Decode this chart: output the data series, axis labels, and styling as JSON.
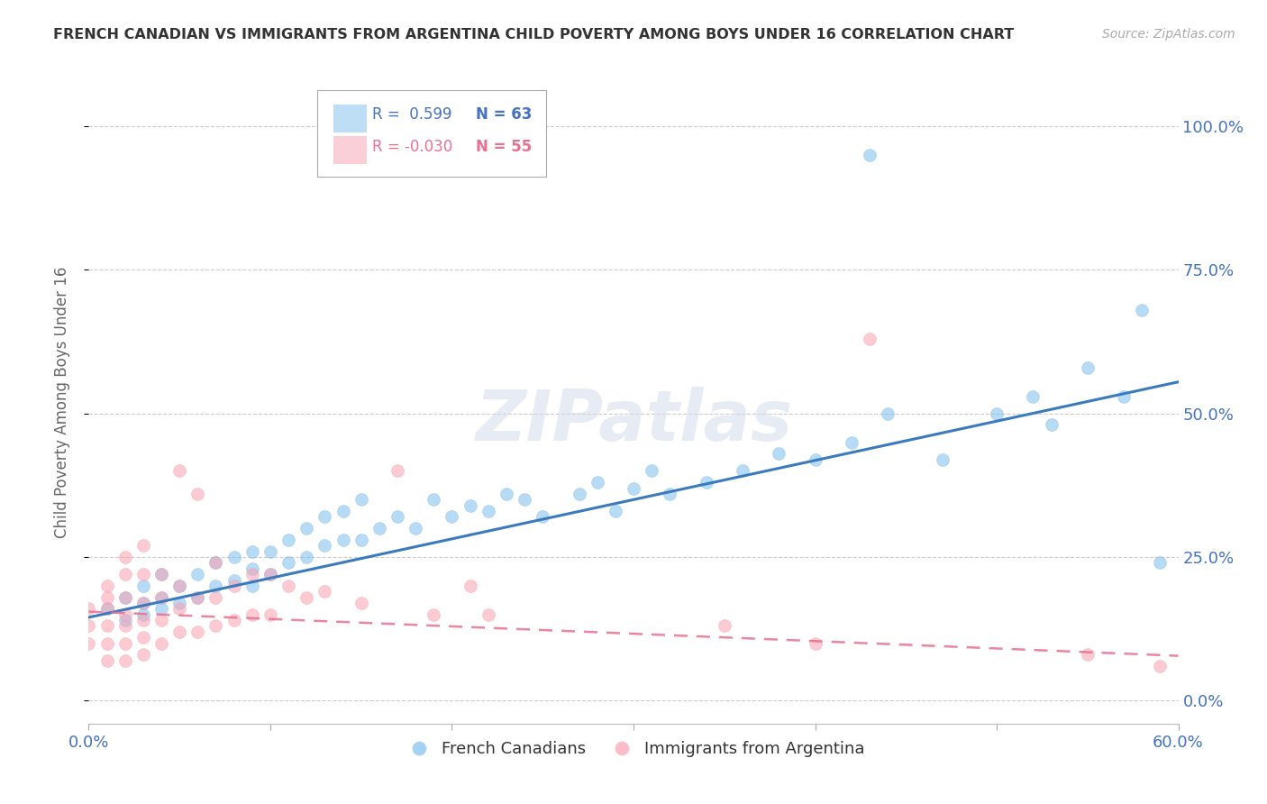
{
  "title": "FRENCH CANADIAN VS IMMIGRANTS FROM ARGENTINA CHILD POVERTY AMONG BOYS UNDER 16 CORRELATION CHART",
  "source": "Source: ZipAtlas.com",
  "ylabel": "Child Poverty Among Boys Under 16",
  "xlim": [
    0.0,
    0.6
  ],
  "ylim": [
    -0.04,
    1.08
  ],
  "yticks": [
    0.0,
    0.25,
    0.5,
    0.75,
    1.0
  ],
  "ytick_labels": [
    "0.0%",
    "25.0%",
    "50.0%",
    "75.0%",
    "100.0%"
  ],
  "xtick_positions": [
    0.0,
    0.1,
    0.2,
    0.3,
    0.4,
    0.5,
    0.6
  ],
  "xtick_labels": [
    "0.0%",
    "",
    "",
    "",
    "",
    "",
    "60.0%"
  ],
  "legend_r_blue": "R =  0.599",
  "legend_n_blue": "N = 63",
  "legend_r_pink": "R = -0.030",
  "legend_n_pink": "N = 55",
  "blue_color": "#7fbfed",
  "pink_color": "#f9a0b0",
  "line_blue_color": "#3a7abf",
  "line_pink_color": "#e87090",
  "watermark": "ZIPatlas",
  "blue_scatter_x": [
    0.01,
    0.02,
    0.02,
    0.03,
    0.03,
    0.03,
    0.04,
    0.04,
    0.04,
    0.05,
    0.05,
    0.06,
    0.06,
    0.07,
    0.07,
    0.08,
    0.08,
    0.09,
    0.09,
    0.09,
    0.1,
    0.1,
    0.11,
    0.11,
    0.12,
    0.12,
    0.13,
    0.13,
    0.14,
    0.14,
    0.15,
    0.15,
    0.16,
    0.17,
    0.18,
    0.19,
    0.2,
    0.21,
    0.22,
    0.23,
    0.24,
    0.25,
    0.27,
    0.28,
    0.29,
    0.3,
    0.31,
    0.32,
    0.34,
    0.36,
    0.38,
    0.4,
    0.42,
    0.44,
    0.47,
    0.5,
    0.52,
    0.53,
    0.55,
    0.57,
    0.58,
    0.59,
    0.43
  ],
  "blue_scatter_y": [
    0.16,
    0.14,
    0.18,
    0.15,
    0.17,
    0.2,
    0.16,
    0.18,
    0.22,
    0.17,
    0.2,
    0.18,
    0.22,
    0.2,
    0.24,
    0.21,
    0.25,
    0.2,
    0.23,
    0.26,
    0.22,
    0.26,
    0.24,
    0.28,
    0.25,
    0.3,
    0.27,
    0.32,
    0.28,
    0.33,
    0.28,
    0.35,
    0.3,
    0.32,
    0.3,
    0.35,
    0.32,
    0.34,
    0.33,
    0.36,
    0.35,
    0.32,
    0.36,
    0.38,
    0.33,
    0.37,
    0.4,
    0.36,
    0.38,
    0.4,
    0.43,
    0.42,
    0.45,
    0.5,
    0.42,
    0.5,
    0.53,
    0.48,
    0.58,
    0.53,
    0.68,
    0.24,
    0.95
  ],
  "pink_scatter_x": [
    0.0,
    0.0,
    0.0,
    0.01,
    0.01,
    0.01,
    0.01,
    0.01,
    0.01,
    0.02,
    0.02,
    0.02,
    0.02,
    0.02,
    0.02,
    0.02,
    0.03,
    0.03,
    0.03,
    0.03,
    0.03,
    0.03,
    0.04,
    0.04,
    0.04,
    0.04,
    0.05,
    0.05,
    0.05,
    0.05,
    0.06,
    0.06,
    0.06,
    0.07,
    0.07,
    0.07,
    0.08,
    0.08,
    0.09,
    0.09,
    0.1,
    0.1,
    0.11,
    0.12,
    0.13,
    0.15,
    0.17,
    0.19,
    0.21,
    0.22,
    0.35,
    0.4,
    0.43,
    0.55,
    0.59
  ],
  "pink_scatter_y": [
    0.1,
    0.13,
    0.16,
    0.07,
    0.1,
    0.13,
    0.16,
    0.18,
    0.2,
    0.07,
    0.1,
    0.13,
    0.15,
    0.18,
    0.22,
    0.25,
    0.08,
    0.11,
    0.14,
    0.17,
    0.22,
    0.27,
    0.1,
    0.14,
    0.18,
    0.22,
    0.12,
    0.16,
    0.2,
    0.4,
    0.12,
    0.18,
    0.36,
    0.13,
    0.18,
    0.24,
    0.14,
    0.2,
    0.15,
    0.22,
    0.15,
    0.22,
    0.2,
    0.18,
    0.19,
    0.17,
    0.4,
    0.15,
    0.2,
    0.15,
    0.13,
    0.1,
    0.63,
    0.08,
    0.06
  ],
  "blue_line_x": [
    0.0,
    0.6
  ],
  "blue_line_y": [
    0.145,
    0.555
  ],
  "pink_line_x": [
    0.0,
    0.6
  ],
  "pink_line_y": [
    0.155,
    0.078
  ],
  "background_color": "#ffffff",
  "grid_color": "#cccccc",
  "title_color": "#333333",
  "axis_label_color": "#4472c4",
  "ylabel_color": "#666666",
  "legend_blue_label": "French Canadians",
  "legend_pink_label": "Immigrants from Argentina"
}
